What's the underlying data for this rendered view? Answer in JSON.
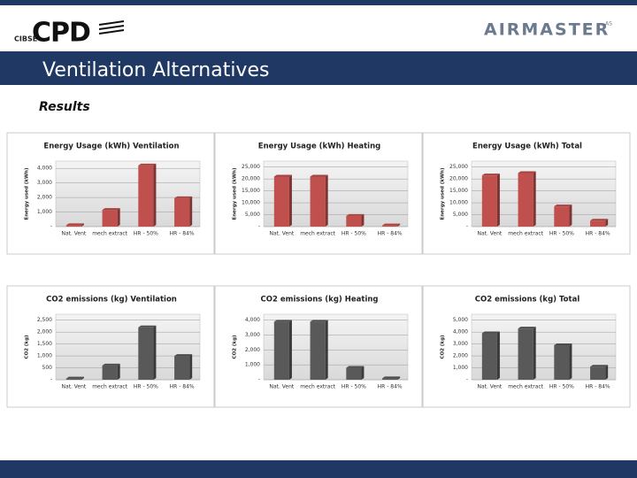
{
  "header": {
    "logo_left": "CPD",
    "logo_left_sub": "CIBSE",
    "logo_right": "AIRMASTER",
    "logo_right_sup": "AS",
    "title": "Ventilation Alternatives",
    "subtitle": "Results"
  },
  "chart_data": [
    {
      "type": "bar",
      "title": "Energy Usage (kWh) Ventilation",
      "y_label": "Energy used (kWh)",
      "color": "#c0504d",
      "categories": [
        "Nat. Vent",
        "mech extract",
        "HR - 50%",
        "HR - 84%"
      ],
      "values": [
        100,
        1150,
        4200,
        1950
      ],
      "ylim": [
        0,
        4500
      ],
      "yticks": [
        {
          "value": 0,
          "label": "-"
        },
        {
          "value": 1000,
          "label": "1,000"
        },
        {
          "value": 2000,
          "label": "2,000"
        },
        {
          "value": 3000,
          "label": "3,000"
        },
        {
          "value": 4000,
          "label": "4,000"
        }
      ],
      "grid": true
    },
    {
      "type": "bar",
      "title": "Energy Usage (kWh) Heating",
      "y_label": "Energy used (kWh)",
      "color": "#c0504d",
      "categories": [
        "Nat. Vent",
        "mech extract",
        "HR - 50%",
        "HR - 84%"
      ],
      "values": [
        21000,
        21000,
        4500,
        500
      ],
      "ylim": [
        0,
        27500
      ],
      "yticks": [
        {
          "value": 0,
          "label": "-"
        },
        {
          "value": 5000,
          "label": "5,000"
        },
        {
          "value": 10000,
          "label": "10,000"
        },
        {
          "value": 15000,
          "label": "15,000"
        },
        {
          "value": 20000,
          "label": "20,000"
        },
        {
          "value": 25000,
          "label": "25,000"
        }
      ],
      "grid": true
    },
    {
      "type": "bar",
      "title": "Energy Usage (kWh) Total",
      "y_label": "Energy used (kWh)",
      "color": "#c0504d",
      "categories": [
        "Nat. Vent",
        "mech extract",
        "HR - 50%",
        "HR - 84%"
      ],
      "values": [
        21500,
        22500,
        8500,
        2500
      ],
      "ylim": [
        0,
        27500
      ],
      "yticks": [
        {
          "value": 0,
          "label": "-"
        },
        {
          "value": 5000,
          "label": "5,000"
        },
        {
          "value": 10000,
          "label": "10,000"
        },
        {
          "value": 15000,
          "label": "15,000"
        },
        {
          "value": 20000,
          "label": "20,000"
        },
        {
          "value": 25000,
          "label": "25,000"
        }
      ],
      "grid": true
    },
    {
      "type": "bar",
      "title": "CO2 emissions (kg) Ventilation",
      "y_label": "CO2 (kg)",
      "color": "#595959",
      "categories": [
        "Nat. Vent",
        "mech extract",
        "HR - 50%",
        "HR - 84%"
      ],
      "values": [
        50,
        600,
        2200,
        1000
      ],
      "ylim": [
        0,
        2750
      ],
      "yticks": [
        {
          "value": 0,
          "label": "-"
        },
        500,
        {
          "value": 1000,
          "label": "1,000"
        },
        {
          "value": 1500,
          "label": "1,500"
        },
        {
          "value": 2000,
          "label": "2,000"
        },
        {
          "value": 2500,
          "label": "2,500"
        }
      ],
      "grid": true
    },
    {
      "type": "bar",
      "title": "CO2 emissions (kg) Heating",
      "y_label": "CO2 (kg)",
      "color": "#595959",
      "categories": [
        "Nat. Vent",
        "mech extract",
        "HR - 50%",
        "HR - 84%"
      ],
      "values": [
        3900,
        3900,
        800,
        100
      ],
      "ylim": [
        0,
        4400
      ],
      "yticks": [
        {
          "value": 0,
          "label": "-"
        },
        {
          "value": 1000,
          "label": "1,000"
        },
        {
          "value": 2000,
          "label": "2,000"
        },
        {
          "value": 3000,
          "label": "3,000"
        },
        {
          "value": 4000,
          "label": "4,000"
        }
      ],
      "grid": true
    },
    {
      "type": "bar",
      "title": "CO2 emissions (kg) Total",
      "y_label": "CO2 (kg)",
      "color": "#595959",
      "categories": [
        "Nat. Vent",
        "mech extract",
        "HR - 50%",
        "HR - 84%"
      ],
      "values": [
        3900,
        4300,
        2900,
        1100
      ],
      "ylim": [
        0,
        5500
      ],
      "yticks": [
        {
          "value": 0,
          "label": "-"
        },
        {
          "value": 1000,
          "label": "1,000"
        },
        {
          "value": 2000,
          "label": "2,000"
        },
        {
          "value": 3000,
          "label": "3,000"
        },
        {
          "value": 4000,
          "label": "4,000"
        },
        {
          "value": 5000,
          "label": "5,000"
        }
      ],
      "grid": true
    }
  ]
}
